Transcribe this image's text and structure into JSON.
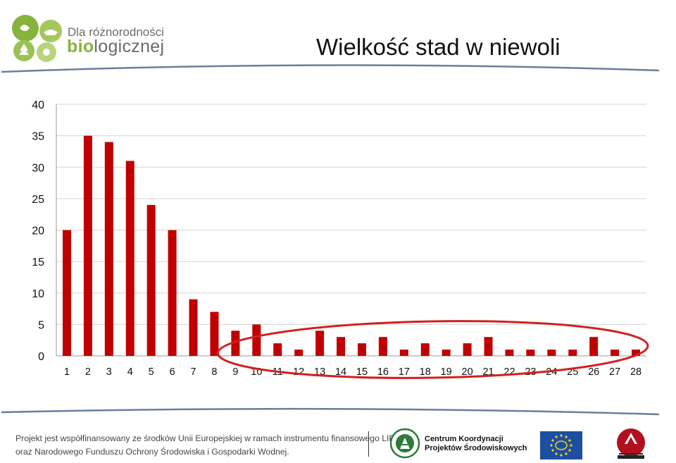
{
  "branding": {
    "line1": "Dla różnorodności",
    "line2_highlight": "bio",
    "line2_rest": "logicznej"
  },
  "slide_title": "Wielkość stad w niewoli",
  "chart_data": {
    "type": "bar",
    "title": "",
    "xlabel": "",
    "ylabel": "",
    "categories": [
      "1",
      "2",
      "3",
      "4",
      "5",
      "6",
      "7",
      "8",
      "9",
      "10",
      "11",
      "12",
      "13",
      "14",
      "15",
      "16",
      "17",
      "18",
      "19",
      "20",
      "21",
      "22",
      "23",
      "24",
      "25",
      "26",
      "27",
      "28"
    ],
    "values": [
      20,
      35,
      34,
      31,
      24,
      20,
      9,
      7,
      4,
      5,
      2,
      1,
      4,
      3,
      2,
      3,
      1,
      2,
      1,
      2,
      3,
      1,
      1,
      1,
      1,
      3,
      1,
      1
    ],
    "ylim": [
      0,
      40
    ],
    "yticks": [
      0,
      5,
      10,
      15,
      20,
      25,
      30,
      35,
      40
    ],
    "grid": true,
    "bar_color": "#c00000",
    "highlight": {
      "shape": "ellipse",
      "from_category": "9",
      "to_category": "28",
      "color": "#d22020"
    }
  },
  "footer": {
    "line1": "Projekt jest współfinansowany ze środków Unii Europejskiej w ramach instrumentu finansowego LIFE+",
    "line2": "oraz Narodowego Funduszu Ochrony Środowiska i Gospodarki Wodnej.",
    "partner_line1": "Centrum Koordynacji",
    "partner_line2": "Projektów Środowiskowych"
  },
  "colors": {
    "brand_green": "#86b43b",
    "brand_gray": "#6b6b6b",
    "accent_line": "#6a7f9a"
  }
}
